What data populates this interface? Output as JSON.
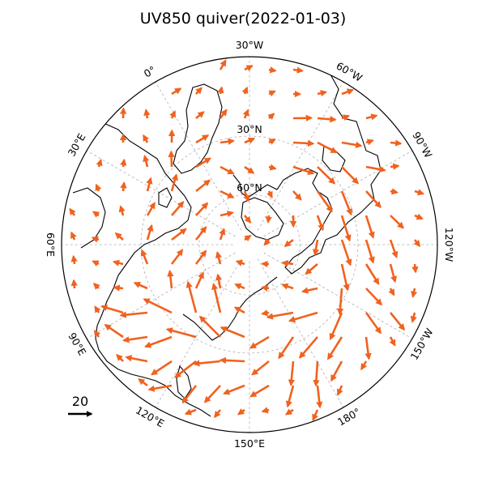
{
  "title": "UV850 quiver(2022-01-03)",
  "colors": {
    "arrow": "#f0621f",
    "grid": "#b0b0b0",
    "coast": "#000000"
  },
  "projection": "north-polar-stereographic",
  "central_meridian_top": "30°W",
  "latitude_circles": [
    {
      "lat": 30,
      "label": "30°N"
    },
    {
      "lat": 60,
      "label": "60°N"
    }
  ],
  "longitude_labels": [
    {
      "lon": -30,
      "text": "30°W",
      "rot": 0
    },
    {
      "lon": -60,
      "text": "60°W",
      "rot": 30
    },
    {
      "lon": -90,
      "text": "90°W",
      "rot": 60
    },
    {
      "lon": -120,
      "text": "120°W",
      "rot": 90
    },
    {
      "lon": -150,
      "text": "150°W",
      "rot": -60
    },
    {
      "lon": 180,
      "text": "180°",
      "rot": -30
    },
    {
      "lon": 150,
      "text": "150°E",
      "rot": 0
    },
    {
      "lon": 120,
      "text": "120°E",
      "rot": 30
    },
    {
      "lon": 90,
      "text": "90°E",
      "rot": 60
    },
    {
      "lon": 60,
      "text": "60°E",
      "rot": 90
    },
    {
      "lon": 30,
      "text": "30°E",
      "rot": -60
    },
    {
      "lon": 0,
      "text": "0°",
      "rot": -30
    }
  ],
  "quiver_key": {
    "value": 20,
    "label": "20"
  }
}
